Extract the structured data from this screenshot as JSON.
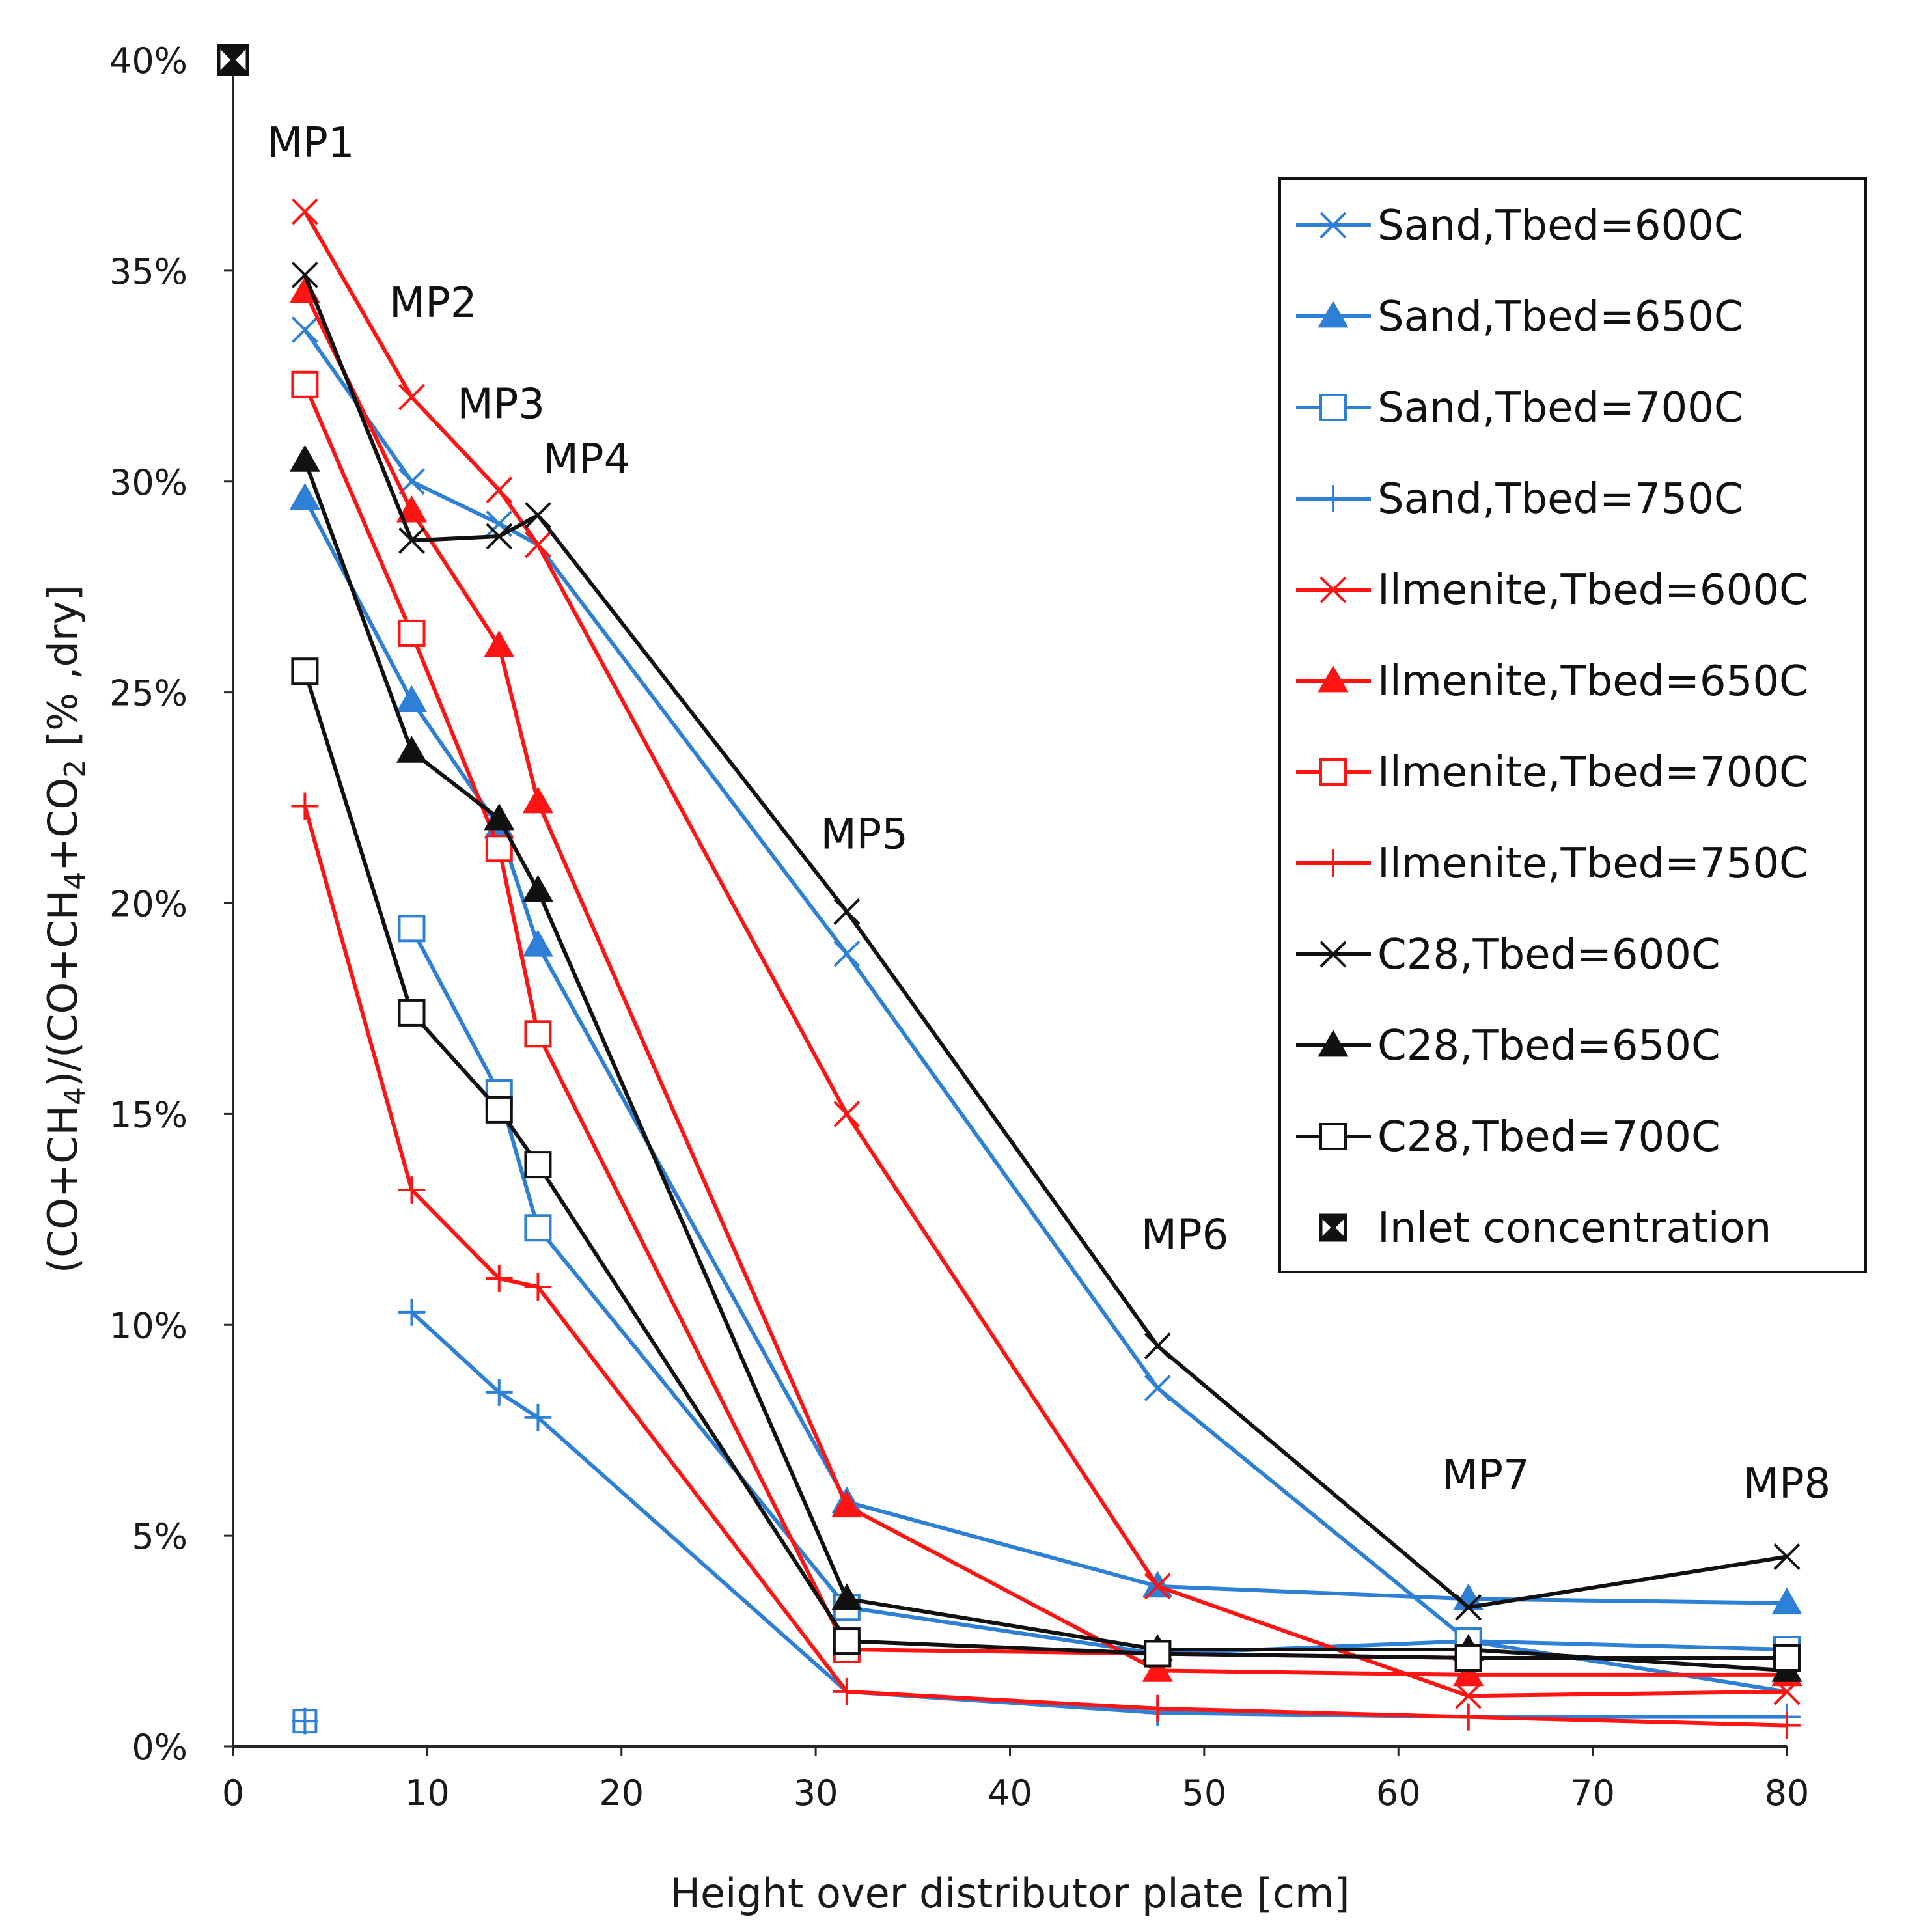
{
  "chart_data": {
    "type": "line",
    "title": "",
    "xlabel": "Height over distributor plate [cm]",
    "ylabel_parts": [
      "(CO+CH",
      "4",
      ")/(CO+CH",
      "4",
      "+CO",
      "2",
      " [% ,dry]"
    ],
    "xlim": [
      0,
      80
    ],
    "ylim": [
      0,
      40
    ],
    "x_ticks": [
      0,
      10,
      20,
      30,
      40,
      50,
      60,
      70,
      80
    ],
    "y_ticks": [
      0,
      5,
      10,
      15,
      20,
      25,
      30,
      35,
      40
    ],
    "y_tick_labels": [
      "0%",
      "5%",
      "10%",
      "15%",
      "20%",
      "25%",
      "30%",
      "35%",
      "40%"
    ],
    "grid": false,
    "legend_position": "top-right",
    "annotations": [
      {
        "text": "MP1",
        "x": 4,
        "y": 37.7
      },
      {
        "text": "MP2",
        "x": 10.3,
        "y": 33.9
      },
      {
        "text": "MP3",
        "x": 13.8,
        "y": 31.5
      },
      {
        "text": "MP4",
        "x": 18.2,
        "y": 30.2
      },
      {
        "text": "MP5",
        "x": 32.5,
        "y": 21.3
      },
      {
        "text": "MP6",
        "x": 49,
        "y": 11.8
      },
      {
        "text": "MP7",
        "x": 64.5,
        "y": 6.1
      },
      {
        "text": "MP8",
        "x": 80,
        "y": 5.9
      }
    ],
    "series": [
      {
        "name": "Sand,Tbed=600C",
        "color": "#2e7fd6",
        "marker": "x",
        "x": [
          3.7,
          9.2,
          13.7,
          15.7,
          31.6,
          47.6,
          63.6,
          80
        ],
        "values": [
          33.6,
          30,
          29,
          28.5,
          18.8,
          8.5,
          2.5,
          1.3
        ]
      },
      {
        "name": "Sand,Tbed=650C",
        "color": "#2e7fd6",
        "marker": "triangle",
        "x": [
          3.7,
          9.2,
          13.7,
          15.7,
          31.6,
          47.6,
          63.6,
          80
        ],
        "values": [
          29.6,
          24.8,
          21.8,
          19,
          5.8,
          3.8,
          3.5,
          3.4
        ]
      },
      {
        "name": "Sand,Tbed=700C",
        "color": "#2e7fd6",
        "marker": "square",
        "x": [
          9.2,
          13.7,
          15.7,
          31.6,
          47.6,
          63.6,
          80
        ],
        "values": [
          19.4,
          15.5,
          12.3,
          3.3,
          2.2,
          2.5,
          2.3
        ]
      },
      {
        "name": "Sand,Tbed=750C",
        "color": "#2e7fd6",
        "marker": "plus",
        "x": [
          9.2,
          13.7,
          15.7,
          31.6,
          47.6,
          63.6,
          80
        ],
        "values": [
          10.3,
          8.4,
          7.8,
          1.3,
          0.8,
          0.7,
          0.7
        ]
      },
      {
        "name": "Ilmenite,Tbed=600C",
        "color": "#ff1414",
        "marker": "x",
        "x": [
          3.7,
          9.2,
          13.7,
          15.7,
          31.6,
          47.6,
          63.6,
          80
        ],
        "values": [
          36.4,
          32,
          29.8,
          28.5,
          15,
          3.8,
          1.2,
          1.3
        ]
      },
      {
        "name": "Ilmenite,Tbed=650C",
        "color": "#ff1414",
        "marker": "triangle",
        "x": [
          3.7,
          9.2,
          13.7,
          15.7,
          31.6,
          47.6,
          63.6,
          80
        ],
        "values": [
          34.5,
          29.3,
          26.1,
          22.4,
          5.7,
          1.8,
          1.7,
          1.7
        ]
      },
      {
        "name": "Ilmenite,Tbed=700C",
        "color": "#ff1414",
        "marker": "square",
        "x": [
          3.7,
          9.2,
          13.7,
          15.7,
          31.6,
          47.6,
          63.6,
          80
        ],
        "values": [
          32.3,
          26.4,
          21.3,
          16.9,
          2.3,
          2.2,
          2.1,
          2.1
        ]
      },
      {
        "name": "Ilmenite,Tbed=750C",
        "color": "#ff1414",
        "marker": "plus",
        "x": [
          3.7,
          9.2,
          13.7,
          15.7,
          31.6,
          47.6,
          63.6,
          80
        ],
        "values": [
          22.3,
          13.2,
          11.1,
          10.9,
          1.3,
          0.9,
          0.7,
          0.5
        ]
      },
      {
        "name": "C28,Tbed=600C",
        "color": "#111111",
        "marker": "x",
        "x": [
          3.7,
          9.2,
          13.7,
          15.7,
          31.6,
          47.6,
          63.6,
          80
        ],
        "values": [
          34.9,
          28.6,
          28.7,
          29.2,
          19.8,
          9.5,
          3.3,
          4.5
        ]
      },
      {
        "name": "C28,Tbed=650C",
        "color": "#111111",
        "marker": "triangle",
        "x": [
          3.7,
          9.2,
          13.7,
          15.7,
          31.6,
          47.6,
          63.6,
          80
        ],
        "values": [
          30.5,
          23.6,
          22,
          20.3,
          3.5,
          2.3,
          2.3,
          1.8
        ]
      },
      {
        "name": "C28,Tbed=700C",
        "color": "#111111",
        "marker": "square",
        "x": [
          3.7,
          9.2,
          13.7,
          15.7,
          31.6,
          47.6,
          63.6,
          80
        ],
        "values": [
          25.5,
          17.4,
          15.1,
          13.8,
          2.5,
          2.2,
          2.1,
          2.1
        ]
      }
    ],
    "points": [
      {
        "name": "Inlet concentration",
        "color": "#111111",
        "marker": "boxed-x",
        "x": 0,
        "y": 40
      },
      {
        "name": "",
        "color": "#2e7fd6",
        "marker": "boxed-plus",
        "x": 3.7,
        "y": 0.6
      }
    ]
  }
}
